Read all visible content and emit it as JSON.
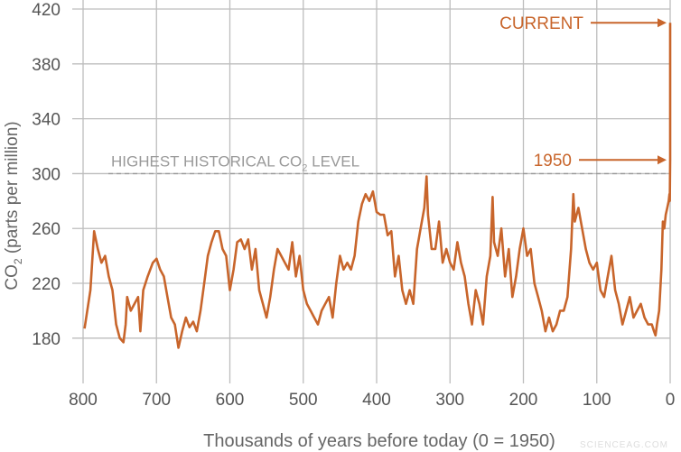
{
  "chart_data": {
    "type": "line",
    "color": "#c8652b",
    "xlabel": "Thousands of years before today (0 = 1950)",
    "ylabel": [
      "CO",
      "2",
      " (parts per million)"
    ],
    "xlim": [
      800,
      0
    ],
    "ylim": [
      147,
      420
    ],
    "xticks": [
      800,
      700,
      600,
      500,
      400,
      300,
      200,
      100,
      0
    ],
    "yticks": [
      180,
      220,
      260,
      300,
      340,
      380,
      420
    ],
    "grid": true,
    "reference_line": {
      "value": 300,
      "label": [
        "HIGHEST HISTORICAL CO",
        "2",
        " LEVEL"
      ]
    },
    "annotations": [
      {
        "text": "CURRENT",
        "x": 0,
        "y": 410
      },
      {
        "text": "1950",
        "x": 0,
        "y": 310
      }
    ],
    "watermark": "SCIENCEAG.COM",
    "x": [
      798,
      790,
      785,
      780,
      775,
      770,
      765,
      760,
      755,
      750,
      745,
      742,
      740,
      735,
      730,
      725,
      722,
      718,
      712,
      705,
      700,
      695,
      690,
      685,
      680,
      675,
      670,
      665,
      660,
      655,
      650,
      645,
      640,
      635,
      630,
      625,
      620,
      615,
      610,
      605,
      600,
      595,
      590,
      585,
      580,
      575,
      570,
      565,
      560,
      555,
      550,
      545,
      540,
      535,
      530,
      525,
      520,
      515,
      510,
      505,
      500,
      495,
      490,
      485,
      480,
      475,
      470,
      465,
      460,
      455,
      450,
      445,
      440,
      435,
      430,
      425,
      420,
      415,
      410,
      405,
      400,
      395,
      390,
      385,
      380,
      375,
      370,
      365,
      360,
      355,
      350,
      345,
      340,
      335,
      332,
      330,
      325,
      320,
      315,
      310,
      305,
      300,
      295,
      290,
      285,
      280,
      275,
      270,
      265,
      260,
      255,
      250,
      245,
      242,
      240,
      235,
      230,
      225,
      220,
      215,
      210,
      205,
      200,
      195,
      190,
      185,
      180,
      175,
      170,
      165,
      160,
      155,
      150,
      145,
      140,
      135,
      132,
      130,
      125,
      120,
      115,
      110,
      105,
      100,
      95,
      90,
      85,
      80,
      75,
      70,
      65,
      60,
      55,
      50,
      45,
      40,
      35,
      30,
      25,
      22,
      20,
      18,
      15,
      12,
      10,
      8,
      6,
      4,
      2,
      1,
      0.5,
      0,
      0
    ],
    "values": [
      187,
      215,
      258,
      245,
      235,
      240,
      225,
      215,
      190,
      180,
      177,
      190,
      210,
      200,
      205,
      210,
      185,
      215,
      225,
      235,
      238,
      230,
      225,
      210,
      195,
      190,
      173,
      185,
      195,
      188,
      192,
      185,
      200,
      220,
      240,
      250,
      258,
      258,
      245,
      240,
      215,
      230,
      250,
      252,
      245,
      252,
      230,
      245,
      215,
      205,
      195,
      210,
      230,
      245,
      240,
      235,
      230,
      250,
      225,
      240,
      215,
      205,
      200,
      195,
      190,
      200,
      205,
      210,
      195,
      220,
      240,
      230,
      235,
      230,
      240,
      265,
      278,
      285,
      280,
      287,
      272,
      270,
      270,
      255,
      258,
      225,
      240,
      215,
      205,
      215,
      205,
      245,
      260,
      275,
      298,
      270,
      245,
      245,
      265,
      235,
      245,
      235,
      230,
      250,
      235,
      225,
      205,
      190,
      215,
      205,
      190,
      225,
      240,
      283,
      250,
      240,
      260,
      225,
      245,
      210,
      225,
      245,
      260,
      240,
      245,
      220,
      210,
      200,
      185,
      195,
      185,
      190,
      200,
      200,
      210,
      245,
      285,
      265,
      275,
      260,
      245,
      235,
      230,
      235,
      215,
      210,
      225,
      240,
      215,
      205,
      190,
      200,
      210,
      195,
      200,
      205,
      195,
      190,
      190,
      185,
      182,
      190,
      200,
      230,
      265,
      260,
      270,
      275,
      280,
      285,
      280,
      310,
      410
    ]
  }
}
